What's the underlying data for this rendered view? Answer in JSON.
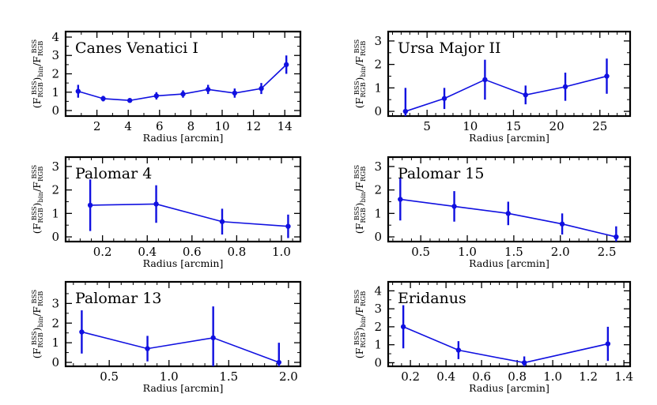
{
  "figure": {
    "colors": {
      "series": "#1010e0",
      "axes": "#000000"
    }
  },
  "chart_data": [
    {
      "type": "line",
      "title": "Canes Venatici I",
      "xlabel": "Radius [arcmin]",
      "ylabel": {
        "main": "(F",
        "sub1": "RGB",
        "sup1": "BSS",
        "mid": ")",
        "sub2": "bin",
        "slash": "/F",
        "sub3": "RGB",
        "sup3": "BSS"
      },
      "xlim": [
        0,
        15
      ],
      "ylim": [
        -0.3,
        4.3
      ],
      "xticks": [
        2,
        4,
        6,
        8,
        10,
        12,
        14
      ],
      "xtick_labels": [
        "2",
        "4",
        "6",
        "8",
        "10",
        "12",
        "14"
      ],
      "xminor_step": 1,
      "yticks": [
        0,
        1,
        2,
        3,
        4
      ],
      "ytick_labels": [
        "0",
        "1",
        "2",
        "3",
        "4"
      ],
      "series": [
        {
          "name": "Canes Venatici I",
          "x": [
            0.8,
            2.4,
            4.1,
            5.8,
            7.5,
            9.1,
            10.8,
            12.5,
            14.1
          ],
          "y": [
            1.05,
            0.65,
            0.55,
            0.8,
            0.9,
            1.15,
            0.95,
            1.2,
            2.5
          ],
          "yerr": [
            0.35,
            0.15,
            0.12,
            0.2,
            0.2,
            0.25,
            0.25,
            0.3,
            0.5
          ]
        }
      ]
    },
    {
      "type": "line",
      "title": "Ursa Major II",
      "xlabel": "Radius [arcmin]",
      "ylabel": {
        "main": "(F",
        "sub1": "RGB",
        "sup1": "BSS",
        "mid": ")",
        "sub2": "bin",
        "slash": "/F",
        "sub3": "RGB",
        "sup3": "BSS"
      },
      "xlim": [
        0.5,
        28.5
      ],
      "ylim": [
        -0.2,
        3.4
      ],
      "xticks": [
        5,
        10,
        15,
        20,
        25
      ],
      "xtick_labels": [
        "5",
        "10",
        "15",
        "20",
        "25"
      ],
      "xminor_step": 1,
      "yticks": [
        0,
        1,
        2,
        3
      ],
      "ytick_labels": [
        "0",
        "1",
        "2",
        "3"
      ],
      "series": [
        {
          "name": "Ursa Major II",
          "x": [
            2.5,
            7.0,
            11.7,
            16.4,
            21.0,
            25.8
          ],
          "y": [
            0.0,
            0.55,
            1.35,
            0.7,
            1.05,
            1.5
          ],
          "yerr": [
            1.0,
            0.45,
            0.85,
            0.4,
            0.6,
            0.75
          ]
        }
      ]
    },
    {
      "type": "line",
      "title": "Palomar 4",
      "xlabel": "Radius [arcmin]",
      "ylabel": {
        "main": "(F",
        "sub1": "RGB",
        "sup1": "BSS",
        "mid": ")",
        "sub2": "bin",
        "slash": "/F",
        "sub3": "RGB",
        "sup3": "BSS"
      },
      "xlim": [
        0.035,
        1.085
      ],
      "ylim": [
        -0.2,
        3.4
      ],
      "xticks": [
        0.2,
        0.4,
        0.6,
        0.8,
        1.0
      ],
      "xtick_labels": [
        "0.2",
        "0.4",
        "0.6",
        "0.8",
        "1.0"
      ],
      "xminor_step": 0.05,
      "yticks": [
        0,
        1,
        2,
        3
      ],
      "ytick_labels": [
        "0",
        "1",
        "2",
        "3"
      ],
      "series": [
        {
          "name": "Palomar 4",
          "x": [
            0.145,
            0.44,
            0.735,
            1.03
          ],
          "y": [
            1.35,
            1.4,
            0.65,
            0.45
          ],
          "yerr": [
            1.1,
            0.8,
            0.55,
            0.5
          ]
        }
      ]
    },
    {
      "type": "line",
      "title": "Palomar 15",
      "xlabel": "Radius [arcmin]",
      "ylabel": {
        "main": "(F",
        "sub1": "RGB",
        "sup1": "BSS",
        "mid": ")",
        "sub2": "bin",
        "slash": "/F",
        "sub3": "RGB",
        "sup3": "BSS"
      },
      "xlim": [
        0.15,
        2.75
      ],
      "ylim": [
        -0.2,
        3.4
      ],
      "xticks": [
        0.5,
        1.0,
        1.5,
        2.0,
        2.5
      ],
      "xtick_labels": [
        "0.5",
        "1.0",
        "1.5",
        "2.0",
        "2.5"
      ],
      "xminor_step": 0.1,
      "yticks": [
        0,
        1,
        2,
        3
      ],
      "ytick_labels": [
        "0",
        "1",
        "2",
        "3"
      ],
      "series": [
        {
          "name": "Palomar 15",
          "x": [
            0.28,
            0.86,
            1.44,
            2.02,
            2.6
          ],
          "y": [
            1.6,
            1.3,
            1.0,
            0.55,
            0.0
          ],
          "yerr": [
            0.9,
            0.65,
            0.5,
            0.45,
            0.45
          ]
        }
      ]
    },
    {
      "type": "line",
      "title": "Palomar 13",
      "xlabel": "Radius [arcmin]",
      "ylabel": {
        "main": "(F",
        "sub1": "RGB",
        "sup1": "BSS",
        "mid": ")",
        "sub2": "bin",
        "slash": "/F",
        "sub3": "RGB",
        "sup3": "BSS"
      },
      "xlim": [
        0.135,
        2.1
      ],
      "ylim": [
        -0.2,
        4.1
      ],
      "xticks": [
        0.5,
        1.0,
        1.5,
        2.0
      ],
      "xtick_labels": [
        "0.5",
        "1.0",
        "1.5",
        "2.0"
      ],
      "xminor_step": 0.1,
      "yticks": [
        0,
        1,
        2,
        3
      ],
      "ytick_labels": [
        "0",
        "1",
        "2",
        "3"
      ],
      "series": [
        {
          "name": "Palomar 13",
          "x": [
            0.27,
            0.82,
            1.37,
            1.92
          ],
          "y": [
            1.55,
            0.7,
            1.25,
            0.0
          ],
          "yerr": [
            1.1,
            0.65,
            1.6,
            1.0
          ]
        }
      ]
    },
    {
      "type": "line",
      "title": "Eridanus",
      "xlabel": "Radius [arcmin]",
      "ylabel": {
        "main": "(F",
        "sub1": "RGB",
        "sup1": "BSS",
        "mid": ")",
        "sub2": "bin",
        "slash": "/F",
        "sub3": "RGB",
        "sup3": "BSS"
      },
      "xlim": [
        0.075,
        1.435
      ],
      "ylim": [
        -0.2,
        4.5
      ],
      "xticks": [
        0.2,
        0.4,
        0.6,
        0.8,
        1.0,
        1.2,
        1.4
      ],
      "xtick_labels": [
        "0.2",
        "0.4",
        "0.6",
        "0.8",
        "1.0",
        "1.2",
        "1.4"
      ],
      "xminor_step": 0.05,
      "yticks": [
        0,
        1,
        2,
        3,
        4
      ],
      "ytick_labels": [
        "0",
        "1",
        "2",
        "3",
        "4"
      ],
      "series": [
        {
          "name": "Eridanus",
          "x": [
            0.16,
            0.47,
            0.84,
            1.31
          ],
          "y": [
            2.0,
            0.7,
            0.0,
            1.05
          ],
          "yerr": [
            1.2,
            0.5,
            0.35,
            0.95
          ]
        }
      ]
    }
  ]
}
